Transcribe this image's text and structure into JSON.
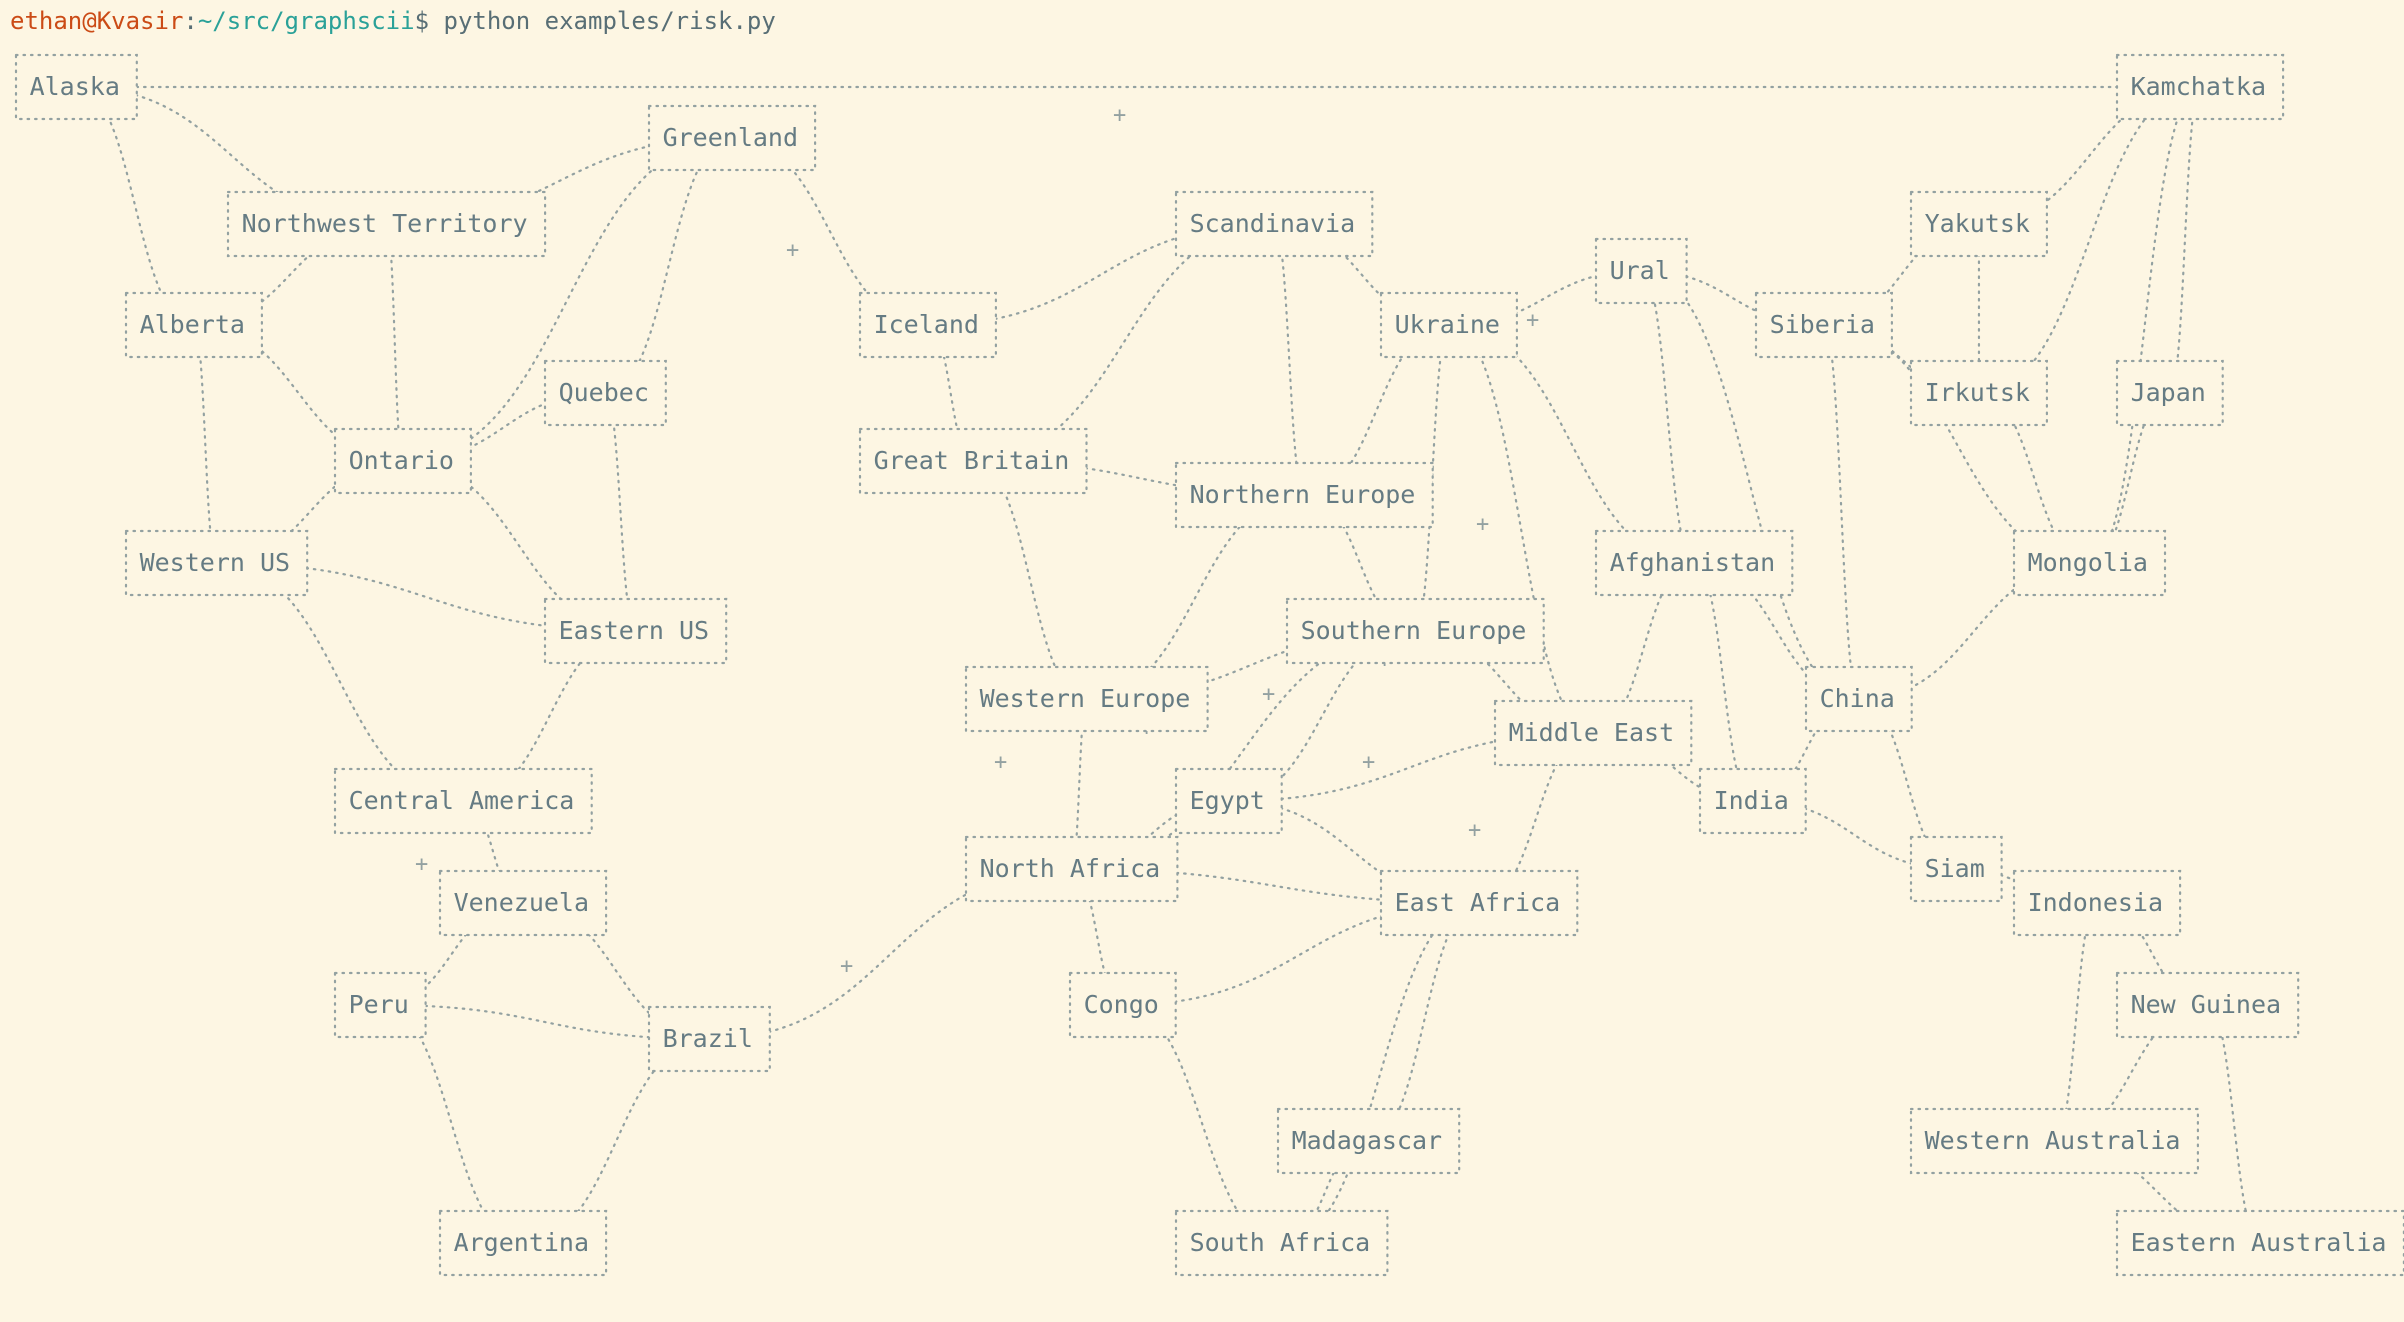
{
  "prompt": {
    "user_host": "ethan@Kvasir",
    "separator": ":",
    "path": "~/src/graphscii",
    "symbol": "$",
    "command": " python examples/risk.py"
  },
  "territories": [
    {
      "id": "alaska",
      "name": "Alaska"
    },
    {
      "id": "kamchatka",
      "name": "Kamchatka"
    },
    {
      "id": "greenland",
      "name": "Greenland"
    },
    {
      "id": "northwest-territory",
      "name": "Northwest Territory"
    },
    {
      "id": "scandinavia",
      "name": "Scandinavia"
    },
    {
      "id": "yakutsk",
      "name": "Yakutsk"
    },
    {
      "id": "ural",
      "name": "Ural"
    },
    {
      "id": "alberta",
      "name": "Alberta"
    },
    {
      "id": "iceland",
      "name": "Iceland"
    },
    {
      "id": "ukraine",
      "name": "Ukraine"
    },
    {
      "id": "siberia",
      "name": "Siberia"
    },
    {
      "id": "quebec",
      "name": "Quebec"
    },
    {
      "id": "irkutsk",
      "name": "Irkutsk"
    },
    {
      "id": "japan",
      "name": "Japan"
    },
    {
      "id": "ontario",
      "name": "Ontario"
    },
    {
      "id": "great-britain",
      "name": "Great Britain"
    },
    {
      "id": "northern-europe",
      "name": "Northern Europe"
    },
    {
      "id": "western-us",
      "name": "Western US"
    },
    {
      "id": "afghanistan",
      "name": "Afghanistan"
    },
    {
      "id": "mongolia",
      "name": "Mongolia"
    },
    {
      "id": "eastern-us",
      "name": "Eastern US"
    },
    {
      "id": "southern-europe",
      "name": "Southern Europe"
    },
    {
      "id": "western-europe",
      "name": "Western Europe"
    },
    {
      "id": "china",
      "name": "China"
    },
    {
      "id": "middle-east",
      "name": "Middle East"
    },
    {
      "id": "central-america",
      "name": "Central America"
    },
    {
      "id": "egypt",
      "name": "Egypt"
    },
    {
      "id": "india",
      "name": "India"
    },
    {
      "id": "north-africa",
      "name": "North Africa"
    },
    {
      "id": "venezuela",
      "name": "Venezuela"
    },
    {
      "id": "siam",
      "name": "Siam"
    },
    {
      "id": "indonesia",
      "name": "Indonesia"
    },
    {
      "id": "east-africa",
      "name": "East Africa"
    },
    {
      "id": "peru",
      "name": "Peru"
    },
    {
      "id": "congo",
      "name": "Congo"
    },
    {
      "id": "new-guinea",
      "name": "New Guinea"
    },
    {
      "id": "brazil",
      "name": "Brazil"
    },
    {
      "id": "western-australia",
      "name": "Western Australia"
    },
    {
      "id": "madagascar",
      "name": "Madagascar"
    },
    {
      "id": "argentina",
      "name": "Argentina"
    },
    {
      "id": "south-africa",
      "name": "South Africa"
    },
    {
      "id": "eastern-australia",
      "name": "Eastern Australia"
    }
  ]
}
